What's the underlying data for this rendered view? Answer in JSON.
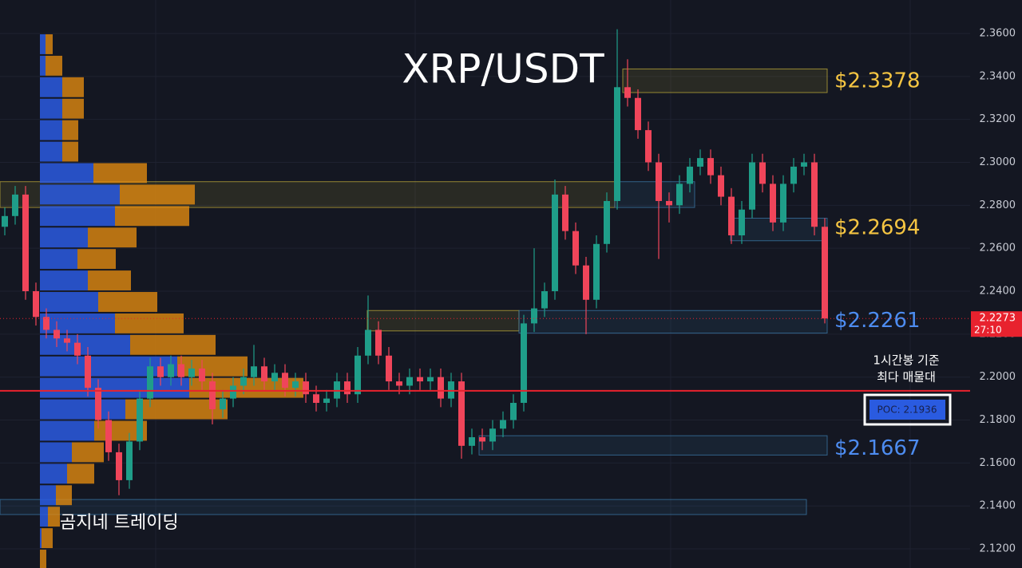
{
  "chart_data": {
    "type": "candlestick",
    "title": "XRP/USDT",
    "watermark": "곰지네 트레이딩",
    "ylim": [
      2.1111,
      2.3756
    ],
    "yticks": [
      {
        "value": 2.12,
        "label": "2.1200"
      },
      {
        "value": 2.14,
        "label": "2.1400"
      },
      {
        "value": 2.16,
        "label": "2.1600"
      },
      {
        "value": 2.18,
        "label": "2.1800"
      },
      {
        "value": 2.2,
        "label": "2.2000"
      },
      {
        "value": 2.22,
        "label": "2.2200"
      },
      {
        "value": 2.24,
        "label": "2.2400"
      },
      {
        "value": 2.26,
        "label": "2.2600"
      },
      {
        "value": 2.28,
        "label": "2.2800"
      },
      {
        "value": 2.3,
        "label": "2.3000"
      },
      {
        "value": 2.32,
        "label": "2.3200"
      },
      {
        "value": 2.34,
        "label": "2.3400"
      },
      {
        "value": 2.36,
        "label": "2.3600"
      }
    ],
    "grid": true,
    "up_color": "#1f9e89",
    "down_color": "#f0455a",
    "open": [
      2.27,
      2.275,
      2.285,
      2.24,
      2.228,
      2.222,
      2.218,
      2.216,
      2.21,
      2.195,
      2.18,
      2.165,
      2.152,
      2.17,
      2.19,
      2.205,
      2.2,
      2.206,
      2.2,
      2.204,
      2.198,
      2.185,
      2.19,
      2.196,
      2.2,
      2.205,
      2.198,
      2.202,
      2.195,
      2.198,
      2.192,
      2.188,
      2.19,
      2.198,
      2.192,
      2.21,
      2.222,
      2.21,
      2.198,
      2.196,
      2.2,
      2.198,
      2.2,
      2.19,
      2.198,
      2.168,
      2.172,
      2.17,
      2.176,
      2.18,
      2.188,
      2.225,
      2.232,
      2.24,
      2.285,
      2.268,
      2.252,
      2.236,
      2.262,
      2.282,
      2.335,
      2.33,
      2.315,
      2.3,
      2.282,
      2.28,
      2.29,
      2.298,
      2.302,
      2.294,
      2.284,
      2.266,
      2.278,
      2.3,
      2.29,
      2.272,
      2.29,
      2.298,
      2.3,
      2.27
    ],
    "high": [
      2.279,
      2.289,
      2.289,
      2.244,
      2.232,
      2.226,
      2.222,
      2.22,
      2.214,
      2.199,
      2.184,
      2.169,
      2.174,
      2.194,
      2.209,
      2.209,
      2.21,
      2.21,
      2.208,
      2.208,
      2.202,
      2.194,
      2.2,
      2.204,
      2.215,
      2.209,
      2.206,
      2.206,
      2.202,
      2.202,
      2.196,
      2.194,
      2.202,
      2.202,
      2.214,
      2.238,
      2.226,
      2.214,
      2.202,
      2.204,
      2.204,
      2.204,
      2.204,
      2.202,
      2.202,
      2.176,
      2.176,
      2.18,
      2.184,
      2.192,
      2.229,
      2.26,
      2.244,
      2.292,
      2.289,
      2.272,
      2.256,
      2.266,
      2.286,
      2.362,
      2.348,
      2.334,
      2.319,
      2.304,
      2.286,
      2.294,
      2.302,
      2.306,
      2.306,
      2.298,
      2.288,
      2.282,
      2.304,
      2.304,
      2.294,
      2.294,
      2.302,
      2.304,
      2.304,
      2.274
    ],
    "low": [
      2.266,
      2.271,
      2.236,
      2.224,
      2.218,
      2.214,
      2.212,
      2.206,
      2.191,
      2.176,
      2.161,
      2.145,
      2.148,
      2.166,
      2.186,
      2.196,
      2.196,
      2.196,
      2.196,
      2.194,
      2.178,
      2.181,
      2.186,
      2.192,
      2.196,
      2.194,
      2.194,
      2.191,
      2.191,
      2.188,
      2.184,
      2.184,
      2.186,
      2.188,
      2.188,
      2.206,
      2.206,
      2.194,
      2.192,
      2.192,
      2.194,
      2.194,
      2.186,
      2.186,
      2.162,
      2.164,
      2.166,
      2.166,
      2.172,
      2.176,
      2.184,
      2.221,
      2.228,
      2.236,
      2.264,
      2.248,
      2.22,
      2.232,
      2.258,
      2.278,
      2.326,
      2.311,
      2.296,
      2.255,
      2.272,
      2.276,
      2.286,
      2.294,
      2.29,
      2.28,
      2.262,
      2.262,
      2.274,
      2.286,
      2.268,
      2.268,
      2.286,
      2.294,
      2.266,
      2.225
    ],
    "close": [
      2.275,
      2.285,
      2.24,
      2.228,
      2.222,
      2.218,
      2.216,
      2.21,
      2.195,
      2.18,
      2.165,
      2.152,
      2.17,
      2.19,
      2.205,
      2.2,
      2.206,
      2.2,
      2.204,
      2.198,
      2.185,
      2.19,
      2.196,
      2.2,
      2.205,
      2.198,
      2.202,
      2.195,
      2.198,
      2.192,
      2.188,
      2.19,
      2.198,
      2.192,
      2.21,
      2.222,
      2.21,
      2.198,
      2.196,
      2.2,
      2.198,
      2.2,
      2.19,
      2.198,
      2.168,
      2.172,
      2.17,
      2.176,
      2.18,
      2.188,
      2.225,
      2.232,
      2.24,
      2.285,
      2.268,
      2.252,
      2.236,
      2.262,
      2.282,
      2.335,
      2.33,
      2.315,
      2.3,
      2.282,
      2.28,
      2.29,
      2.298,
      2.302,
      2.294,
      2.284,
      2.266,
      2.278,
      2.3,
      2.29,
      2.272,
      2.29,
      2.298,
      2.3,
      2.27,
      2.2273
    ],
    "volume_profile": {
      "prices": [
        2.355,
        2.345,
        2.335,
        2.325,
        2.315,
        2.305,
        2.295,
        2.285,
        2.275,
        2.265,
        2.255,
        2.245,
        2.235,
        2.225,
        2.215,
        2.205,
        2.195,
        2.185,
        2.175,
        2.165,
        2.155,
        2.145,
        2.135,
        2.125,
        2.115
      ],
      "buy": [
        7,
        7,
        28,
        28,
        28,
        28,
        67,
        100,
        94,
        60,
        47,
        60,
        73,
        94,
        113,
        172,
        187,
        107,
        68,
        40,
        34,
        20,
        10,
        2,
        0
      ],
      "sell": [
        9,
        21,
        27,
        27,
        20,
        20,
        67,
        94,
        93,
        61,
        48,
        54,
        74,
        86,
        107,
        88,
        143,
        128,
        66,
        40,
        34,
        20,
        15,
        14,
        8
      ],
      "buy_color": "#2a5be0",
      "sell_color": "#e08a10"
    },
    "zones": [
      {
        "low": 2.3325,
        "high": 2.3435,
        "color": "#c9b43a"
      },
      {
        "low": 2.279,
        "high": 2.291,
        "color": "#c9b43a"
      },
      {
        "low": 2.279,
        "high": 2.291,
        "color": "#3d7fb0"
      },
      {
        "low": 2.2635,
        "high": 2.274,
        "color": "#3d7fb0"
      },
      {
        "low": 2.2215,
        "high": 2.231,
        "color": "#c9b43a"
      },
      {
        "low": 2.2205,
        "high": 2.231,
        "color": "#3d7fb0"
      },
      {
        "low": 2.1637,
        "high": 2.1727,
        "color": "#3d7fb0"
      },
      {
        "low": 2.136,
        "high": 2.143,
        "color": "#3d7fb0"
      }
    ],
    "annotations": [
      {
        "text": "$2.3378",
        "value": 2.3378,
        "color": "#f5c542"
      },
      {
        "text": "$2.2694",
        "value": 2.2694,
        "color": "#f5c542"
      },
      {
        "text": "$2.2261",
        "value": 2.2261,
        "color": "#4d8cf0"
      },
      {
        "text": "$2.1667",
        "value": 2.1667,
        "color": "#4d8cf0"
      }
    ],
    "poc": {
      "value": 2.1936,
      "label": "POC: 2.1936",
      "note_line1": "1시간봉 기준",
      "note_line2": "최다 매물대",
      "color": "#e8222e"
    },
    "last_price": {
      "value": 2.2273,
      "label": "2.2273",
      "countdown": "27:10",
      "color": "#e8222e"
    }
  }
}
